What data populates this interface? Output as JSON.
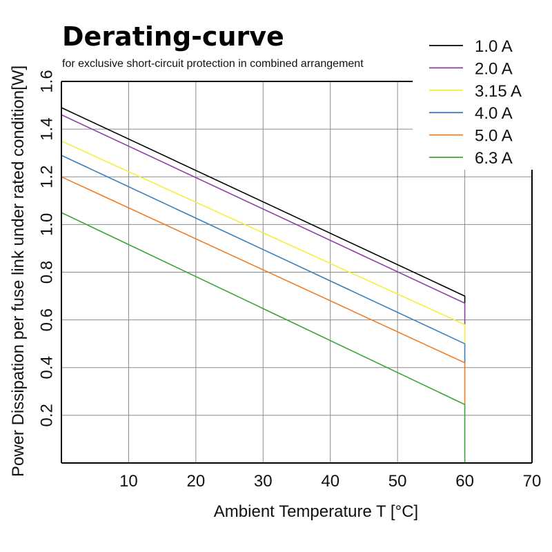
{
  "chart_data": {
    "type": "line",
    "title": "Derating-curve",
    "subtitle": "for exclusive short-circuit protection in combined arrangement",
    "xlabel": "Ambient Temperature T [°C]",
    "ylabel": "Power Dissipation per fuse link under rated condition[W]",
    "xlim": [
      0,
      70
    ],
    "ylim": [
      0,
      1.6
    ],
    "xticks": [
      10,
      20,
      30,
      40,
      50,
      60,
      70
    ],
    "xtick_labels": [
      "10",
      "20",
      "30",
      "40",
      "50",
      "60",
      "70"
    ],
    "yticks": [
      0.2,
      0.4,
      0.6,
      0.8,
      1.0,
      1.2,
      1.4,
      1.6
    ],
    "ytick_labels": [
      "0.2",
      "0.4",
      "0.6",
      "0.8",
      "1.0",
      "1.2",
      "1.4",
      "1.6"
    ],
    "grid": true,
    "legend_position": "top-right",
    "series": [
      {
        "name": "1.0 A",
        "color": "#000000",
        "x": [
          0,
          60,
          60
        ],
        "y": [
          1.49,
          0.7,
          0.67
        ]
      },
      {
        "name": "2.0 A",
        "color": "#8b3fa3",
        "x": [
          0,
          60,
          60
        ],
        "y": [
          1.46,
          0.67,
          0.58
        ]
      },
      {
        "name": "3.15 A",
        "color": "#f5ee3a",
        "x": [
          0,
          60,
          60
        ],
        "y": [
          1.35,
          0.58,
          0.5
        ]
      },
      {
        "name": "4.0 A",
        "color": "#3b7fbf",
        "x": [
          0,
          60,
          60
        ],
        "y": [
          1.29,
          0.5,
          0.42
        ]
      },
      {
        "name": "5.0 A",
        "color": "#f47c20",
        "x": [
          0,
          60,
          60
        ],
        "y": [
          1.2,
          0.42,
          0.245
        ]
      },
      {
        "name": "6.3 A",
        "color": "#3aa63a",
        "x": [
          0,
          60,
          60
        ],
        "y": [
          1.05,
          0.245,
          0.0
        ]
      }
    ]
  }
}
